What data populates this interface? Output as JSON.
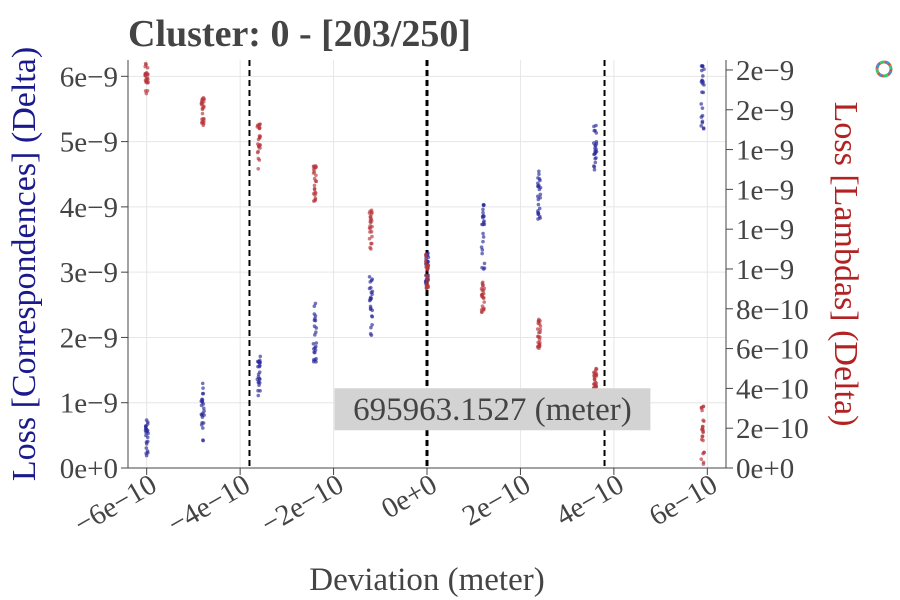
{
  "chart_data": {
    "type": "scatter",
    "title": "Cluster: 0 - [203/250]",
    "xlabel": "Deviation (meter)",
    "ylabel_left": "Loss [Correspondences] (Delta)",
    "ylabel_right": "Loss [Lambdas] (Delta)",
    "xlim": [
      -6.4e-10,
      6.4e-10
    ],
    "ylim_left": [
      0,
      6.25e-09
    ],
    "ylim_right": [
      0,
      2.05e-09
    ],
    "x_ticks": [
      {
        "value": -6e-10,
        "label": "−6e−10"
      },
      {
        "value": -4e-10,
        "label": "−4e−10"
      },
      {
        "value": -2e-10,
        "label": "−2e−10"
      },
      {
        "value": 0,
        "label": "0e+0"
      },
      {
        "value": 2e-10,
        "label": "2e−10"
      },
      {
        "value": 4e-10,
        "label": "4e−10"
      },
      {
        "value": 6e-10,
        "label": "6e−10"
      }
    ],
    "y_left_ticks": [
      {
        "value": 0,
        "label": "0e+0"
      },
      {
        "value": 1e-09,
        "label": "1e−9"
      },
      {
        "value": 2e-09,
        "label": "2e−9"
      },
      {
        "value": 3e-09,
        "label": "3e−9"
      },
      {
        "value": 4e-09,
        "label": "4e−9"
      },
      {
        "value": 5e-09,
        "label": "5e−9"
      },
      {
        "value": 6e-09,
        "label": "6e−9"
      }
    ],
    "y_right_ticks": [
      {
        "value": 0,
        "label": "0e+0"
      },
      {
        "value": 2e-10,
        "label": "2e−10"
      },
      {
        "value": 4e-10,
        "label": "4e−10"
      },
      {
        "value": 6e-10,
        "label": "6e−10"
      },
      {
        "value": 8e-10,
        "label": "8e−10"
      },
      {
        "value": 1e-09,
        "label": "1e−9"
      },
      {
        "value": 1.2e-09,
        "label": "1e−9"
      },
      {
        "value": 1.4e-09,
        "label": "1e−9"
      },
      {
        "value": 1.6e-09,
        "label": "1e−9"
      },
      {
        "value": 1.8e-09,
        "label": "2e−9"
      },
      {
        "value": 2e-09,
        "label": "2e−9"
      }
    ],
    "vlines": [
      {
        "x": -3.8e-10,
        "style": "dashed"
      },
      {
        "x": 0,
        "style": "dashed"
      },
      {
        "x": 3.8e-10,
        "style": "dashed"
      }
    ],
    "annotation": {
      "text": "695963.1527 (meter)",
      "x": 1.4e-10,
      "y": 9e-10
    },
    "grid": true,
    "series": [
      {
        "axis": "left",
        "color": "#2a2a9a",
        "clusters": [
          {
            "x": -6e-10,
            "y_min": 1e-10,
            "y_max": 7.5e-10
          },
          {
            "x": -4.8e-10,
            "y_min": 4e-10,
            "y_max": 1.3e-09
          },
          {
            "x": -3.6e-10,
            "y_min": 1.1e-09,
            "y_max": 1.85e-09
          },
          {
            "x": -2.4e-10,
            "y_min": 1.5e-09,
            "y_max": 2.55e-09
          },
          {
            "x": -1.2e-10,
            "y_min": 2e-09,
            "y_max": 2.95e-09
          },
          {
            "x": 0.0,
            "y_min": 2.7e-09,
            "y_max": 3.4e-09
          },
          {
            "x": 1.2e-10,
            "y_min": 3e-09,
            "y_max": 4.05e-09
          },
          {
            "x": 2.4e-10,
            "y_min": 3.8e-09,
            "y_max": 4.55e-09
          },
          {
            "x": 3.6e-10,
            "y_min": 4.55e-09,
            "y_max": 5.3e-09
          },
          {
            "x": 5.9e-10,
            "y_min": 5e-09,
            "y_max": 6.2e-09
          }
        ]
      },
      {
        "axis": "right",
        "color": "#b5343a",
        "clusters": [
          {
            "x": -6e-10,
            "y_min": 1.88e-09,
            "y_max": 2.04e-09
          },
          {
            "x": -4.8e-10,
            "y_min": 1.7e-09,
            "y_max": 1.87e-09
          },
          {
            "x": -3.6e-10,
            "y_min": 1.5e-09,
            "y_max": 1.73e-09
          },
          {
            "x": -2.4e-10,
            "y_min": 1.32e-09,
            "y_max": 1.53e-09
          },
          {
            "x": -1.2e-10,
            "y_min": 1.1e-09,
            "y_max": 1.3e-09
          },
          {
            "x": 0.0,
            "y_min": 9e-10,
            "y_max": 1.09e-09
          },
          {
            "x": 1.2e-10,
            "y_min": 7.8e-10,
            "y_max": 9.4e-10
          },
          {
            "x": 2.4e-10,
            "y_min": 5.7e-10,
            "y_max": 7.5e-10
          },
          {
            "x": 3.6e-10,
            "y_min": 4e-10,
            "y_max": 5e-10
          },
          {
            "x": 5.9e-10,
            "y_min": 0.0,
            "y_max": 3.2e-10
          }
        ]
      }
    ]
  },
  "toolbar": {
    "logo_icon": "plotly-logo-icon"
  }
}
